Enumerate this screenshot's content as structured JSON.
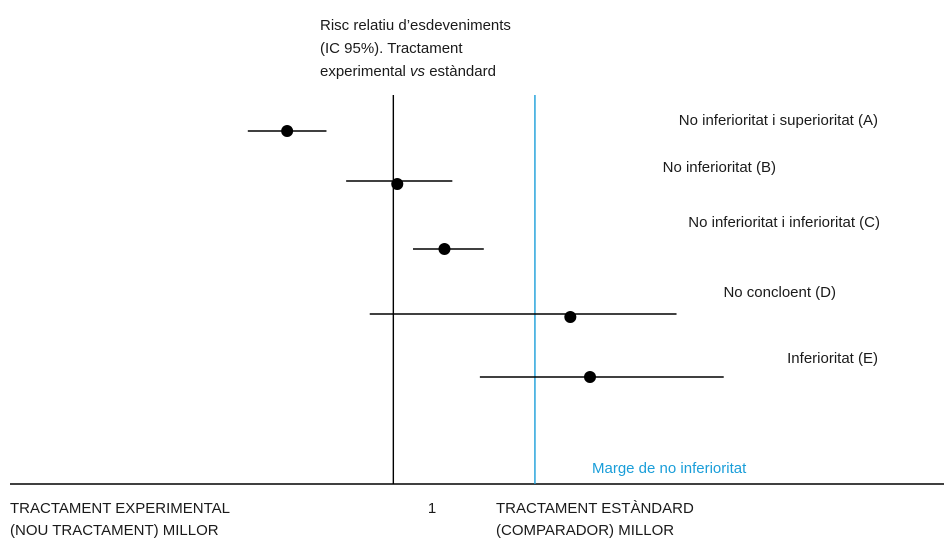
{
  "chart_data": {
    "type": "scatter",
    "title_lines": [
      "Risc relatiu d’esdeveniments",
      "(IC 95%). Tractament",
      "experimental ",
      "vs",
      " estàndard"
    ],
    "null_line_label": "1",
    "margin_label": "Marge de no inferioritat",
    "left_label_lines": [
      "TRACTAMENT EXPERIMENTAL",
      "(NOU TRACTAMENT) MILLOR"
    ],
    "right_label_lines": [
      "TRACTAMENT ESTÀNDARD",
      "(COMPARADOR) MILLOR"
    ],
    "series": [
      {
        "name": "No inferioritat i superioritat (A)",
        "point": 0.73,
        "low": 0.63,
        "high": 0.83
      },
      {
        "name": "No inferioritat (B)",
        "point": 1.01,
        "low": 0.88,
        "high": 1.15
      },
      {
        "name": "No inferioritat i inferioritat (C)",
        "point": 1.13,
        "low": 1.05,
        "high": 1.23
      },
      {
        "name": "No concloent (D)",
        "point": 1.45,
        "low": 0.94,
        "high": 1.72
      },
      {
        "name": "Inferioritat (E)",
        "point": 1.5,
        "low": 1.22,
        "high": 1.84
      }
    ],
    "null_value": 1.0,
    "margin_value": 1.36,
    "xlim": [
      0.0,
      2.4
    ],
    "colors": {
      "ink": "#000000",
      "margin": "#1a9ed9",
      "text": "#1a1a1a"
    }
  }
}
